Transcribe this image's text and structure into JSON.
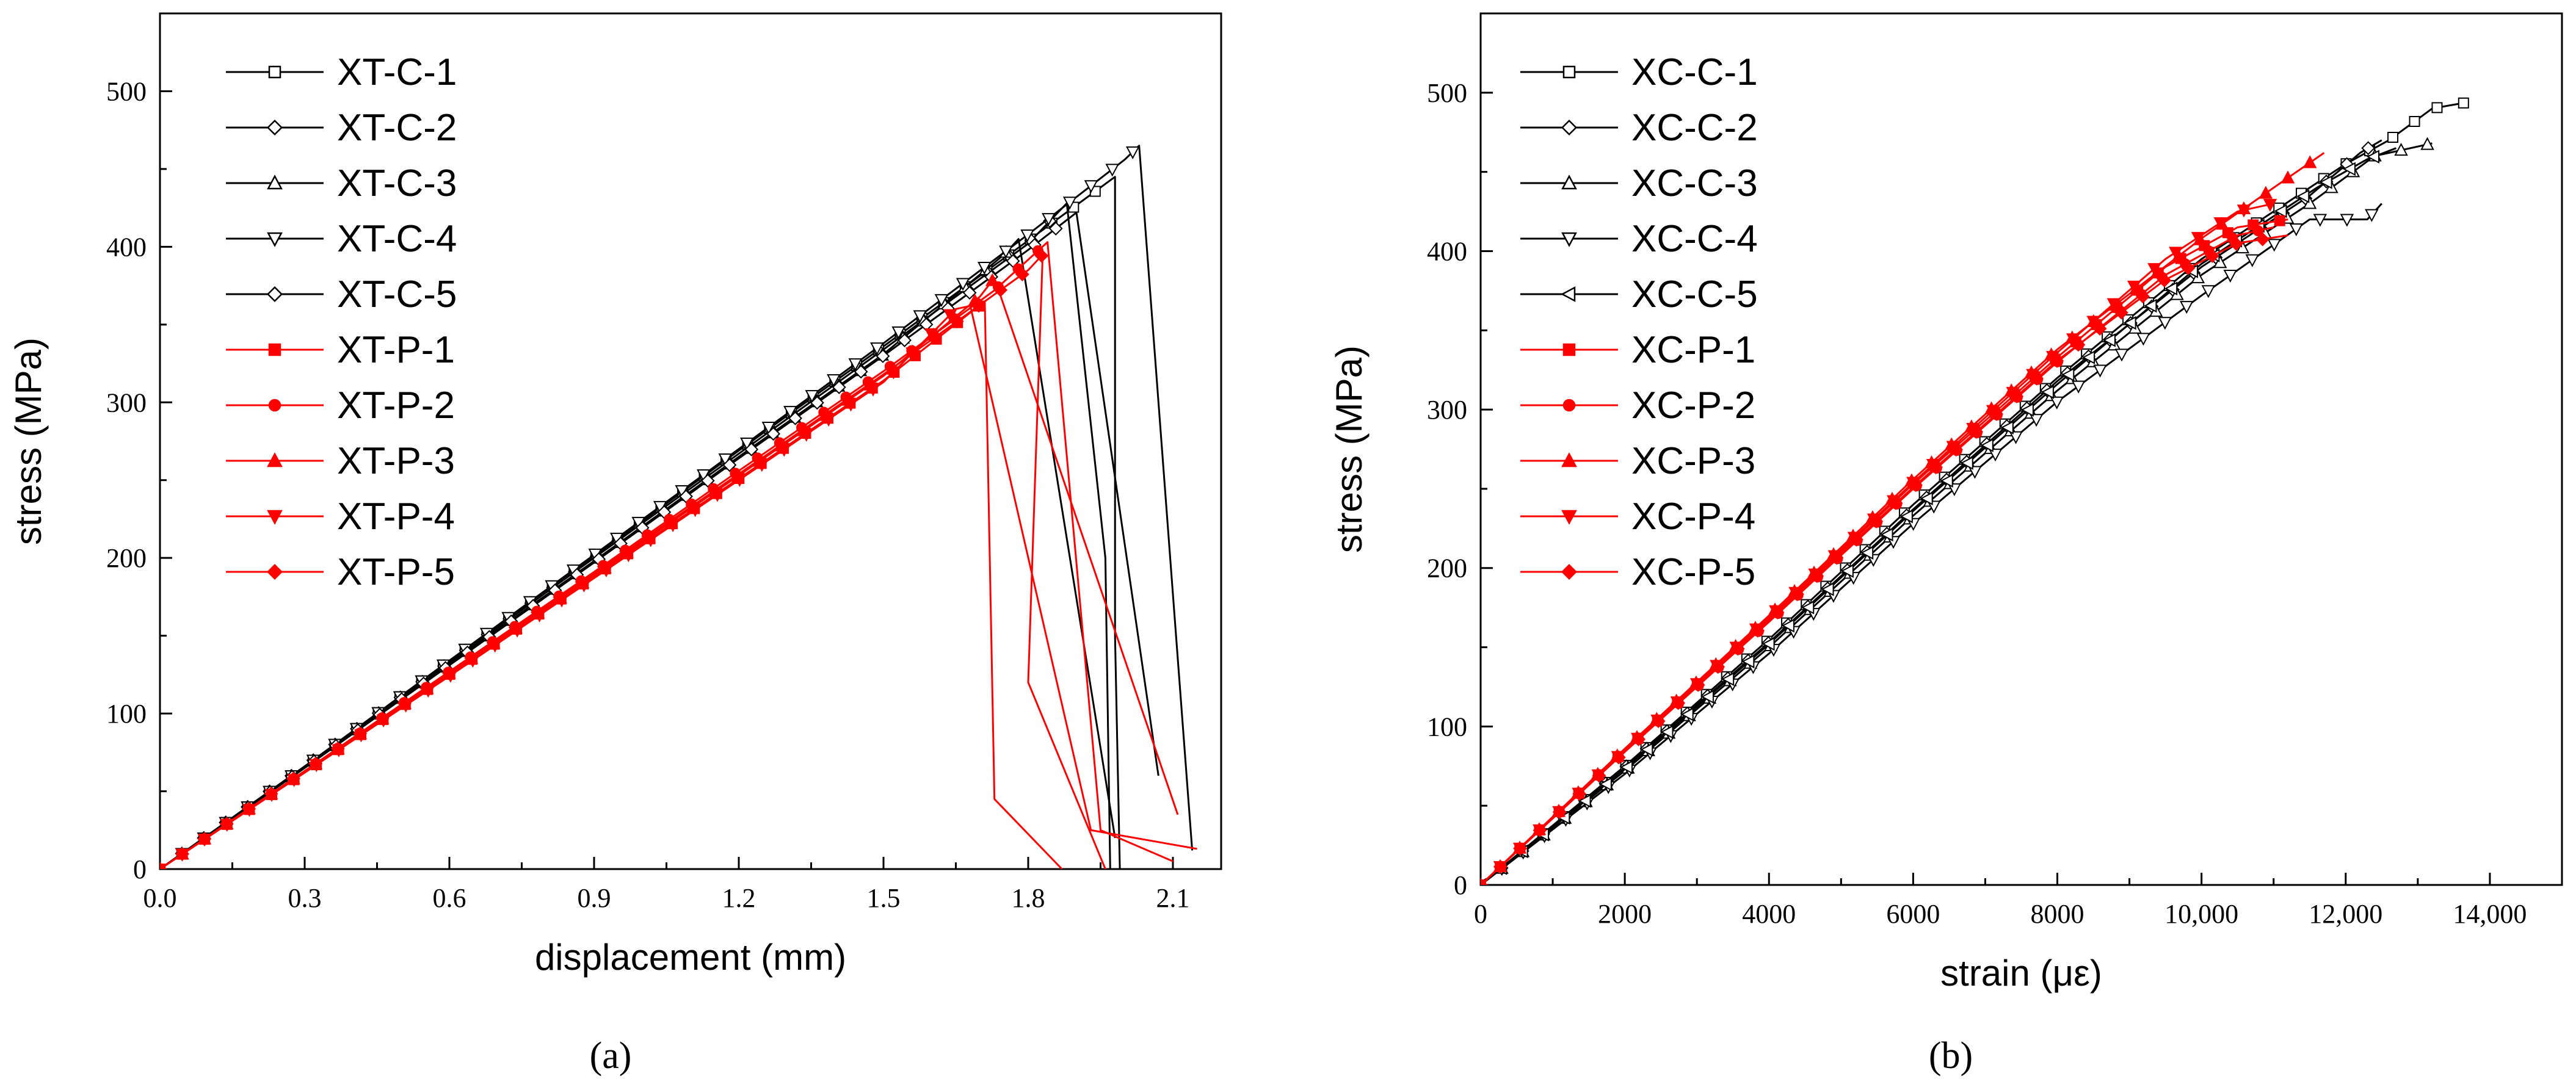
{
  "chart_data": [
    {
      "type": "line",
      "panel_label": "(a)",
      "xlabel": "displacement (mm)",
      "ylabel": "stress (MPa)",
      "xlim": [
        0,
        2.2
      ],
      "ylim": [
        0,
        550
      ],
      "x_ticks": [
        0.0,
        0.3,
        0.6,
        0.9,
        1.2,
        1.5,
        1.8,
        2.1
      ],
      "x_tick_labels": [
        "0.0",
        "0.3",
        "0.6",
        "0.9",
        "1.2",
        "1.5",
        "1.8",
        "2.1"
      ],
      "y_ticks": [
        0,
        100,
        200,
        300,
        400,
        500
      ],
      "y_tick_labels": [
        "0",
        "100",
        "200",
        "300",
        "400",
        "500"
      ],
      "legend_position": "top-left",
      "series": [
        {
          "name": "XT-C-1",
          "color": "#000000",
          "marker": "square",
          "points": [
            [
              0,
              0
            ],
            [
              0.3,
              66
            ],
            [
              0.6,
              134
            ],
            [
              0.9,
              201
            ],
            [
              1.2,
              269
            ],
            [
              1.5,
              336
            ],
            [
              1.8,
              404
            ],
            [
              1.98,
              445
            ],
            [
              1.98,
              150
            ],
            [
              1.99,
              0
            ]
          ]
        },
        {
          "name": "XT-C-2",
          "color": "#000000",
          "marker": "diamond",
          "points": [
            [
              0,
              0
            ],
            [
              0.3,
              66
            ],
            [
              0.6,
              133
            ],
            [
              0.9,
              200
            ],
            [
              1.2,
              267
            ],
            [
              1.5,
              334
            ],
            [
              1.8,
              402
            ],
            [
              1.88,
              428
            ],
            [
              1.96,
              200
            ],
            [
              1.97,
              0
            ]
          ]
        },
        {
          "name": "XT-C-3",
          "color": "#000000",
          "marker": "triangle-up",
          "points": [
            [
              0,
              0
            ],
            [
              0.3,
              65
            ],
            [
              0.6,
              132
            ],
            [
              0.9,
              198
            ],
            [
              1.2,
              265
            ],
            [
              1.5,
              331
            ],
            [
              1.75,
              395
            ],
            [
              1.78,
              405
            ],
            [
              1.98,
              20
            ]
          ]
        },
        {
          "name": "XT-C-4",
          "color": "#000000",
          "marker": "triangle-down",
          "points": [
            [
              0,
              0
            ],
            [
              0.3,
              66
            ],
            [
              0.6,
              134
            ],
            [
              0.9,
              202
            ],
            [
              1.2,
              270
            ],
            [
              1.5,
              338
            ],
            [
              1.8,
              408
            ],
            [
              2.0,
              456
            ],
            [
              2.03,
              465
            ],
            [
              2.14,
              12
            ]
          ]
        },
        {
          "name": "XT-C-5",
          "color": "#000000",
          "marker": "diamond",
          "points": [
            [
              0,
              0
            ],
            [
              0.3,
              65
            ],
            [
              0.6,
              131
            ],
            [
              0.9,
              197
            ],
            [
              1.2,
              264
            ],
            [
              1.5,
              330
            ],
            [
              1.8,
              398
            ],
            [
              1.9,
              422
            ],
            [
              2.07,
              60
            ]
          ]
        },
        {
          "name": "XT-P-1",
          "color": "#ff0000",
          "marker": "square",
          "points": [
            [
              0,
              0
            ],
            [
              0.3,
              62
            ],
            [
              0.6,
              125
            ],
            [
              0.9,
              188
            ],
            [
              1.2,
              251
            ],
            [
              1.5,
              314
            ],
            [
              1.71,
              365
            ],
            [
              1.73,
              45
            ],
            [
              1.87,
              0
            ]
          ]
        },
        {
          "name": "XT-P-2",
          "color": "#ff0000",
          "marker": "circle",
          "points": [
            [
              0,
              0
            ],
            [
              0.3,
              63
            ],
            [
              0.6,
              127
            ],
            [
              0.9,
              191
            ],
            [
              1.2,
              256
            ],
            [
              1.5,
              320
            ],
            [
              1.73,
              372
            ],
            [
              1.84,
              403
            ],
            [
              1.95,
              25
            ],
            [
              2.1,
              5
            ]
          ]
        },
        {
          "name": "XT-P-3",
          "color": "#ff0000",
          "marker": "triangle-up",
          "points": [
            [
              0,
              0
            ],
            [
              0.3,
              63
            ],
            [
              0.6,
              126
            ],
            [
              0.9,
              189
            ],
            [
              1.2,
              253
            ],
            [
              1.5,
              317
            ],
            [
              1.7,
              368
            ],
            [
              1.73,
              380
            ],
            [
              2.11,
              35
            ]
          ]
        },
        {
          "name": "XT-P-4",
          "color": "#ff0000",
          "marker": "triangle-down",
          "points": [
            [
              0,
              0
            ],
            [
              0.3,
              62
            ],
            [
              0.6,
              124
            ],
            [
              0.9,
              187
            ],
            [
              1.2,
              250
            ],
            [
              1.5,
              313
            ],
            [
              1.65,
              360
            ],
            [
              1.68,
              362
            ],
            [
              1.93,
              25
            ],
            [
              2.15,
              13
            ]
          ]
        },
        {
          "name": "XT-P-5",
          "color": "#ff0000",
          "marker": "diamond",
          "points": [
            [
              0,
              0
            ],
            [
              0.3,
              63
            ],
            [
              0.6,
              126
            ],
            [
              0.9,
              190
            ],
            [
              1.2,
              254
            ],
            [
              1.5,
              318
            ],
            [
              1.8,
              385
            ],
            [
              1.83,
              395
            ],
            [
              1.8,
              120
            ],
            [
              1.96,
              0
            ]
          ]
        }
      ]
    },
    {
      "type": "line",
      "panel_label": "(b)",
      "xlabel": "strain (με)",
      "ylabel": "stress (MPa)",
      "xlim": [
        0,
        15000
      ],
      "ylim": [
        0,
        550
      ],
      "x_ticks": [
        0,
        2000,
        4000,
        6000,
        8000,
        10000,
        12000,
        14000
      ],
      "x_tick_labels": [
        "0",
        "2000",
        "4000",
        "6000",
        "8000",
        "10,000",
        "12,000",
        "14,000"
      ],
      "y_ticks": [
        0,
        100,
        200,
        300,
        400,
        500
      ],
      "y_tick_labels": [
        "0",
        "100",
        "200",
        "300",
        "400",
        "500"
      ],
      "legend_position": "top-left",
      "series": [
        {
          "name": "XC-C-1",
          "color": "#000000",
          "marker": "square",
          "points": [
            [
              0,
              0
            ],
            [
              2000,
              75
            ],
            [
              4000,
              155
            ],
            [
              6000,
              240
            ],
            [
              8000,
              320
            ],
            [
              10000,
              395
            ],
            [
              12000,
              455
            ],
            [
              12600,
              470
            ],
            [
              13200,
              490
            ],
            [
              13700,
              494
            ]
          ]
        },
        {
          "name": "XC-C-2",
          "color": "#000000",
          "marker": "diamond",
          "points": [
            [
              0,
              0
            ],
            [
              2000,
              74
            ],
            [
              4000,
              153
            ],
            [
              6000,
              237
            ],
            [
              8000,
              318
            ],
            [
              10000,
              390
            ],
            [
              11500,
              435
            ],
            [
              12200,
              462
            ],
            [
              12500,
              470
            ]
          ]
        },
        {
          "name": "XC-C-3",
          "color": "#000000",
          "marker": "triangle-up",
          "points": [
            [
              0,
              0
            ],
            [
              2000,
              72
            ],
            [
              4000,
              150
            ],
            [
              6000,
              233
            ],
            [
              8000,
              312
            ],
            [
              10000,
              385
            ],
            [
              11500,
              430
            ],
            [
              12400,
              460
            ],
            [
              13200,
              468
            ]
          ]
        },
        {
          "name": "XC-C-4",
          "color": "#000000",
          "marker": "triangle-down",
          "points": [
            [
              0,
              0
            ],
            [
              2000,
              70
            ],
            [
              4000,
              146
            ],
            [
              6000,
              228
            ],
            [
              8000,
              305
            ],
            [
              10000,
              372
            ],
            [
              11500,
              420
            ],
            [
              12300,
              420
            ],
            [
              12500,
              430
            ]
          ]
        },
        {
          "name": "XC-C-5",
          "color": "#000000",
          "marker": "triangle-left",
          "points": [
            [
              0,
              0
            ],
            [
              2000,
              73
            ],
            [
              4000,
              152
            ],
            [
              6000,
              236
            ],
            [
              8000,
              316
            ],
            [
              10000,
              392
            ],
            [
              11600,
              440
            ],
            [
              12300,
              458
            ],
            [
              12700,
              465
            ]
          ]
        },
        {
          "name": "XC-P-1",
          "color": "#ff0000",
          "marker": "square",
          "points": [
            [
              0,
              0
            ],
            [
              2000,
              85
            ],
            [
              4000,
              168
            ],
            [
              6000,
              253
            ],
            [
              8000,
              333
            ],
            [
              9500,
              390
            ],
            [
              10500,
              415
            ],
            [
              11200,
              420
            ]
          ]
        },
        {
          "name": "XC-P-2",
          "color": "#ff0000",
          "marker": "circle",
          "points": [
            [
              0,
              0
            ],
            [
              2000,
              84
            ],
            [
              4000,
              166
            ],
            [
              6000,
              250
            ],
            [
              8000,
              330
            ],
            [
              9500,
              385
            ],
            [
              10500,
              410
            ],
            [
              11000,
              415
            ]
          ]
        },
        {
          "name": "XC-P-3",
          "color": "#ff0000",
          "marker": "triangle-up",
          "points": [
            [
              0,
              0
            ],
            [
              2000,
              86
            ],
            [
              4000,
              170
            ],
            [
              6000,
              256
            ],
            [
              8000,
              338
            ],
            [
              10000,
              408
            ],
            [
              11000,
              440
            ],
            [
              11700,
              462
            ]
          ]
        },
        {
          "name": "XC-P-4",
          "color": "#ff0000",
          "marker": "triangle-down",
          "points": [
            [
              0,
              0
            ],
            [
              2000,
              85
            ],
            [
              4000,
              169
            ],
            [
              6000,
              254
            ],
            [
              8000,
              336
            ],
            [
              9500,
              395
            ],
            [
              10500,
              425
            ],
            [
              11000,
              430
            ]
          ]
        },
        {
          "name": "XC-P-5",
          "color": "#ff0000",
          "marker": "diamond",
          "points": [
            [
              0,
              0
            ],
            [
              2000,
              84
            ],
            [
              4000,
              167
            ],
            [
              6000,
              251
            ],
            [
              8000,
              331
            ],
            [
              9500,
              382
            ],
            [
              10500,
              405
            ],
            [
              11200,
              410
            ]
          ]
        }
      ]
    }
  ]
}
